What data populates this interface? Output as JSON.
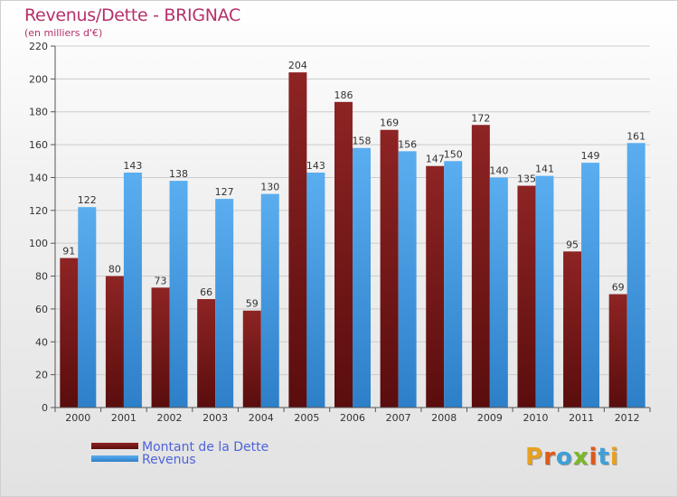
{
  "title": "Revenus/Dette - BRIGNAC",
  "subtitle": "(en milliers d'€)",
  "colors": {
    "dette": "#8b1a1a",
    "revenus": "#4a9fe0",
    "title": "#b5306b",
    "legend_text": "#4f63d8"
  },
  "legend": {
    "dette_label": "Montant de la Dette",
    "revenus_label": "Revenus"
  },
  "logo": {
    "text": "Proxiti"
  },
  "chart_data": {
    "type": "bar",
    "title": "Revenus/Dette - BRIGNAC",
    "subtitle": "(en milliers d'€)",
    "xlabel": "",
    "ylabel": "",
    "ylim": [
      0,
      220
    ],
    "yticks": [
      0,
      20,
      40,
      60,
      80,
      100,
      120,
      140,
      160,
      180,
      200,
      220
    ],
    "grid": true,
    "legend_position": "bottom-left",
    "categories": [
      "2000",
      "2001",
      "2002",
      "2003",
      "2004",
      "2005",
      "2006",
      "2007",
      "2008",
      "2009",
      "2010",
      "2011",
      "2012"
    ],
    "series": [
      {
        "name": "Montant de la Dette",
        "values": [
          91,
          80,
          73,
          66,
          59,
          204,
          186,
          169,
          147,
          172,
          135,
          95,
          69
        ]
      },
      {
        "name": "Revenus",
        "values": [
          122,
          143,
          138,
          127,
          130,
          143,
          158,
          156,
          150,
          140,
          141,
          149,
          161
        ]
      }
    ]
  }
}
